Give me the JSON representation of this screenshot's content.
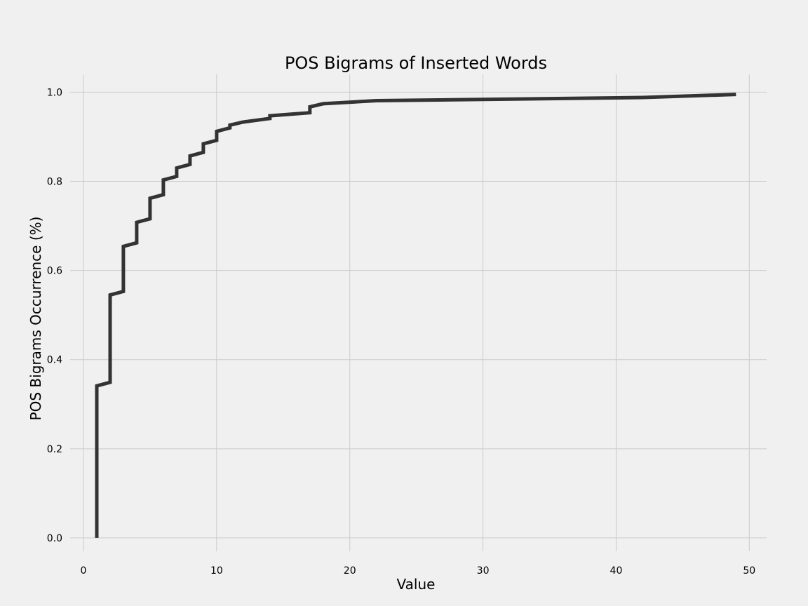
{
  "chart_data": {
    "type": "line",
    "drawstyle": "steps-post",
    "title": "POS Bigrams of Inserted Words",
    "xlabel": "Value",
    "ylabel": "POS Bigrams Occurrence (%)",
    "xlim": [
      -1,
      51.3
    ],
    "ylim": [
      -0.03,
      1.04
    ],
    "xticks": [
      0,
      10,
      20,
      30,
      40,
      50
    ],
    "yticks": [
      0.0,
      0.2,
      0.4,
      0.6,
      0.8,
      1.0
    ],
    "xtick_labels": [
      "0",
      "10",
      "20",
      "30",
      "40",
      "50"
    ],
    "ytick_labels": [
      "0.0",
      "0.2",
      "0.4",
      "0.6",
      "0.8",
      "1.0"
    ],
    "grid": true,
    "line_color": "#333333",
    "background_color": "#f0f0f0",
    "grid_color": "#cbcbcb",
    "series": [
      {
        "x": [
          1,
          1,
          2,
          2,
          3,
          3,
          4,
          4,
          5,
          5,
          6,
          6,
          7,
          7,
          8,
          8,
          9,
          9,
          10,
          10,
          11,
          11,
          12,
          14,
          14,
          17,
          17,
          18,
          22,
          42,
          49
        ],
        "y": [
          0.0,
          0.341,
          0.349,
          0.545,
          0.553,
          0.654,
          0.662,
          0.708,
          0.716,
          0.762,
          0.77,
          0.803,
          0.811,
          0.83,
          0.838,
          0.857,
          0.865,
          0.884,
          0.892,
          0.912,
          0.92,
          0.926,
          0.933,
          0.941,
          0.947,
          0.954,
          0.967,
          0.974,
          0.981,
          0.988,
          0.995
        ]
      }
    ]
  }
}
